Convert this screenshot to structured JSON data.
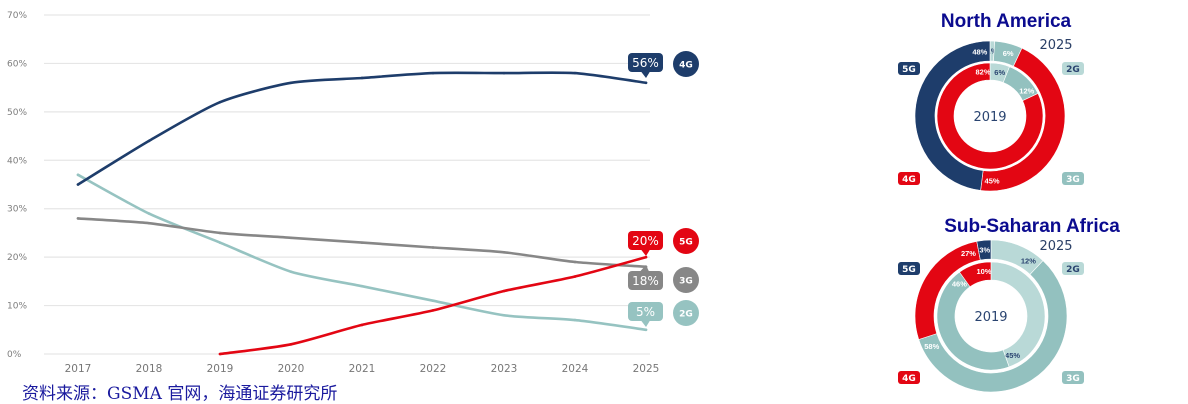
{
  "footer": {
    "source": "资料来源：GSMA 官网，海通证券研究所"
  },
  "chart_data": [
    {
      "type": "line",
      "title": "",
      "xlabel": "",
      "ylabel": "",
      "categories": [
        "2017",
        "2018",
        "2019",
        "2020",
        "2021",
        "2022",
        "2023",
        "2024",
        "2025"
      ],
      "ylim": [
        0,
        70
      ],
      "yticks": [
        0,
        10,
        20,
        30,
        40,
        50,
        60,
        70
      ],
      "ytick_labels": [
        "0%",
        "10%",
        "20%",
        "30%",
        "40%",
        "50%",
        "60%",
        "70%"
      ],
      "grid": true,
      "legend": "right",
      "series": [
        {
          "name": "4G",
          "color": "#1e3d6b",
          "values": [
            35,
            44,
            52,
            56,
            57,
            58,
            58,
            58,
            56
          ],
          "end_label": "56%"
        },
        {
          "name": "5G",
          "color": "#e30613",
          "values": [
            null,
            null,
            0,
            2,
            6,
            9,
            13,
            16,
            20
          ],
          "end_label": "20%"
        },
        {
          "name": "3G",
          "color": "#878787",
          "values": [
            28,
            27,
            25,
            24,
            23,
            22,
            21,
            19,
            18
          ],
          "end_label": "18%"
        },
        {
          "name": "2G",
          "color": "#96c3c1",
          "values": [
            37,
            29,
            23,
            17,
            14,
            11,
            8,
            7,
            5
          ],
          "end_label": "5%"
        }
      ]
    },
    {
      "type": "pie",
      "title": "North America",
      "outer_label": "2025",
      "center_label": "2019",
      "slice_colors": {
        "2G": "#b9d9d7",
        "3G": "#93c1bf",
        "4G": "#e30613",
        "5G": "#1e3d6b"
      },
      "text_colors": {
        "2G": "#2a4470",
        "3G": "#ffffff",
        "4G": "#ffffff",
        "5G": "#ffffff"
      },
      "legend": [
        {
          "label": "5G",
          "position": "top-left"
        },
        {
          "label": "2G",
          "position": "top-right"
        },
        {
          "label": "4G",
          "position": "bottom-left"
        },
        {
          "label": "3G",
          "position": "bottom-right"
        }
      ],
      "rings": [
        {
          "name": "2025",
          "ring": "outer",
          "slices": [
            {
              "label": "2G",
              "value": 1,
              "text": "1%"
            },
            {
              "label": "3G",
              "value": 6,
              "text": "6%"
            },
            {
              "label": "4G",
              "value": 45,
              "text": "45%"
            },
            {
              "label": "5G",
              "value": 48,
              "text": "48%"
            }
          ]
        },
        {
          "name": "2019",
          "ring": "inner",
          "slices": [
            {
              "label": "2G",
              "value": 6,
              "text": "6%"
            },
            {
              "label": "3G",
              "value": 12,
              "text": "12%"
            },
            {
              "label": "4G",
              "value": 82,
              "text": "82%"
            }
          ]
        }
      ]
    },
    {
      "type": "pie",
      "title": "Sub-Saharan Africa",
      "outer_label": "2025",
      "center_label": "2019",
      "slice_colors": {
        "2G": "#b9d9d7",
        "3G": "#93c1bf",
        "4G": "#e30613",
        "5G": "#1e3d6b"
      },
      "text_colors": {
        "2G": "#2a4470",
        "3G": "#ffffff",
        "4G": "#ffffff",
        "5G": "#ffffff"
      },
      "legend": [
        {
          "label": "5G",
          "position": "top-left"
        },
        {
          "label": "2G",
          "position": "top-right"
        },
        {
          "label": "4G",
          "position": "bottom-left"
        },
        {
          "label": "3G",
          "position": "bottom-right"
        }
      ],
      "rings": [
        {
          "name": "2025",
          "ring": "outer",
          "slices": [
            {
              "label": "2G",
              "value": 12,
              "text": "12%"
            },
            {
              "label": "3G",
              "value": 58,
              "text": "58%"
            },
            {
              "label": "4G",
              "value": 27,
              "text": "27%"
            },
            {
              "label": "5G",
              "value": 3,
              "text": "3%"
            }
          ]
        },
        {
          "name": "2019",
          "ring": "inner",
          "slices": [
            {
              "label": "2G",
              "value": 45,
              "text": "45%"
            },
            {
              "label": "3G",
              "value": 46,
              "text": "46%"
            },
            {
              "label": "4G",
              "value": 10,
              "text": "10%"
            }
          ]
        }
      ]
    }
  ]
}
